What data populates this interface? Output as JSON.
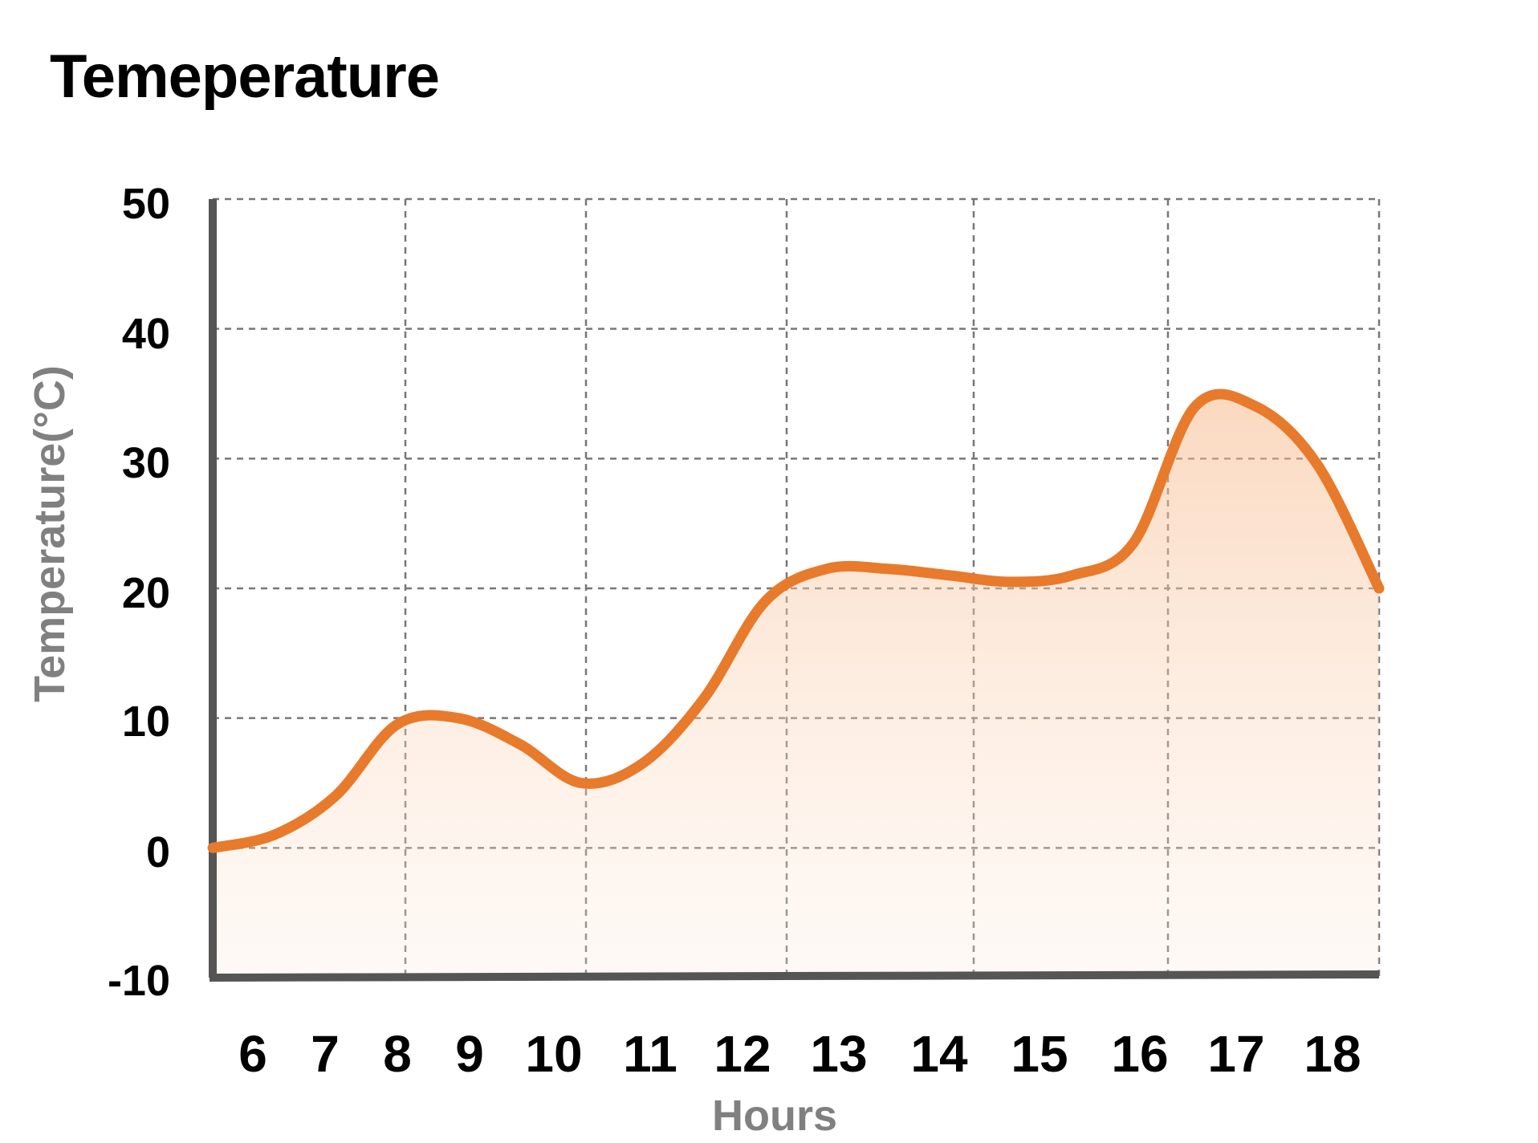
{
  "chart_data": {
    "type": "area",
    "title": "Temeperature",
    "xlabel": "Hours",
    "ylabel": "Temperature(°C)",
    "x_tick_labels": [
      "6",
      "7",
      "8",
      "9",
      "10",
      "11",
      "12",
      "13",
      "14",
      "15",
      "16",
      "17",
      "18"
    ],
    "y_tick_labels": [
      "-10",
      "0",
      "10",
      "20",
      "30",
      "40",
      "50"
    ],
    "ylim": [
      -10,
      50
    ],
    "grid": true,
    "legend": "none",
    "series": [
      {
        "values": [
          0,
          1,
          4,
          9.5,
          10,
          8,
          5,
          6.5,
          11.5,
          19,
          21.5,
          21.5,
          21,
          20.5,
          21,
          23.5,
          34,
          34,
          29.5,
          20
        ]
      }
    ],
    "colors": {
      "line": "#E87A2C",
      "fill": "#FBD9BF",
      "axis": "#555555",
      "grid": "#777777"
    }
  }
}
